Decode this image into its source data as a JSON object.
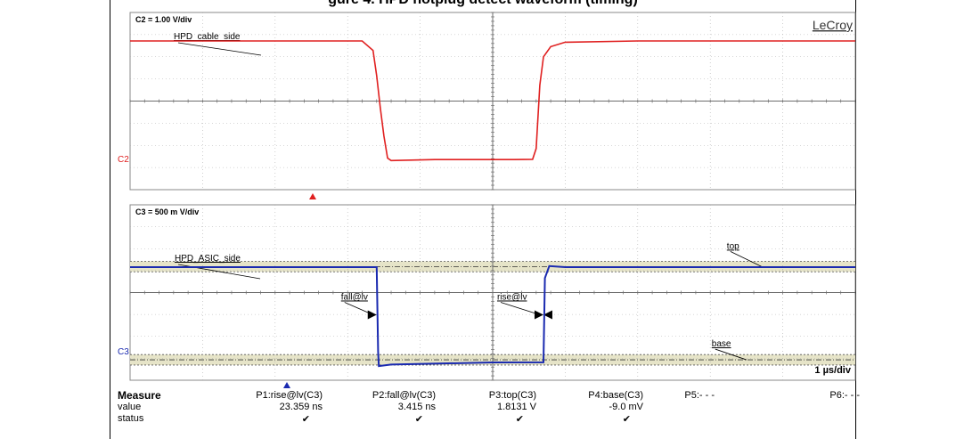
{
  "page": {
    "title": "gure 4. HPD hotplug detect waveform (timing)",
    "brand": "LeCroy"
  },
  "colors": {
    "c2_trace": "#e02020",
    "c3_trace": "#1a2ab0",
    "band": "#e6e4c8",
    "grid": "#b0b0b0",
    "axis": "#6e6e6e"
  },
  "chart_data": [
    {
      "type": "line",
      "name": "upper-panel",
      "scale_label": "C2 = 1.00 V/div",
      "channel_marker": "C2",
      "series": [
        {
          "name": "HPD_cable_side",
          "points": [
            [
              -5,
              1.9
            ],
            [
              -3.0,
              1.9
            ],
            [
              -1.8,
              1.9
            ],
            [
              -1.65,
              1.6
            ],
            [
              -1.6,
              0.8
            ],
            [
              -1.55,
              -0.2
            ],
            [
              -1.5,
              -1.1
            ],
            [
              -1.45,
              -1.8
            ],
            [
              -1.4,
              -1.88
            ],
            [
              -0.8,
              -1.85
            ],
            [
              0.3,
              -1.85
            ],
            [
              0.55,
              -1.84
            ],
            [
              0.6,
              -1.5
            ],
            [
              0.65,
              0.5
            ],
            [
              0.7,
              1.4
            ],
            [
              0.8,
              1.72
            ],
            [
              1.0,
              1.86
            ],
            [
              2.0,
              1.9
            ],
            [
              5,
              1.9
            ]
          ]
        }
      ],
      "xlim": [
        -5,
        5
      ],
      "ylim": [
        -2.8,
        2.8
      ]
    },
    {
      "type": "line",
      "name": "lower-panel",
      "scale_label": "C3 = 500 m V/div",
      "channel_marker": "C3",
      "time_scale": "1 µs/div",
      "series": [
        {
          "name": "HPD_ASIC_side",
          "points": [
            [
              -5,
              1.81
            ],
            [
              -1.7,
              1.81
            ],
            [
              -1.6,
              1.81
            ],
            [
              -1.58,
              0.2
            ],
            [
              -1.57,
              -0.08
            ],
            [
              -1.4,
              -0.05
            ],
            [
              0.0,
              -0.01
            ],
            [
              0.7,
              -0.009
            ],
            [
              0.72,
              1.6
            ],
            [
              0.78,
              1.83
            ],
            [
              1.0,
              1.81
            ],
            [
              5,
              1.81
            ]
          ]
        }
      ],
      "bands": [
        {
          "name": "top",
          "center": 1.82,
          "half_width": 0.1
        },
        {
          "name": "base",
          "center": 0.04,
          "half_width": 0.1
        }
      ],
      "annotations": [
        {
          "text": "fall@lv",
          "x": -1.6,
          "y": 0.9
        },
        {
          "text": "rise@lv",
          "x": 0.7,
          "y": 0.9
        },
        {
          "text": "top",
          "x": 2.0,
          "y": 1.82
        },
        {
          "text": "base",
          "x": 2.0,
          "y": 0.04
        }
      ],
      "xlim": [
        -5,
        5
      ],
      "ylim": [
        -0.35,
        3.0
      ]
    }
  ],
  "measure": {
    "header_label": "Measure",
    "value_label": "value",
    "status_label": "status",
    "params": [
      {
        "name": "P1:rise@lv(C3)",
        "value": "23.359 ns",
        "status": "✔"
      },
      {
        "name": "P2:fall@lv(C3)",
        "value": "3.415 ns",
        "status": "✔"
      },
      {
        "name": "P3:top(C3)",
        "value": "1.8131 V",
        "status": "✔"
      },
      {
        "name": "P4:base(C3)",
        "value": "-9.0 mV",
        "status": "✔"
      },
      {
        "name": "P5:- - -",
        "value": "",
        "status": ""
      },
      {
        "name": "P6:- - -",
        "value": "",
        "status": ""
      }
    ]
  }
}
